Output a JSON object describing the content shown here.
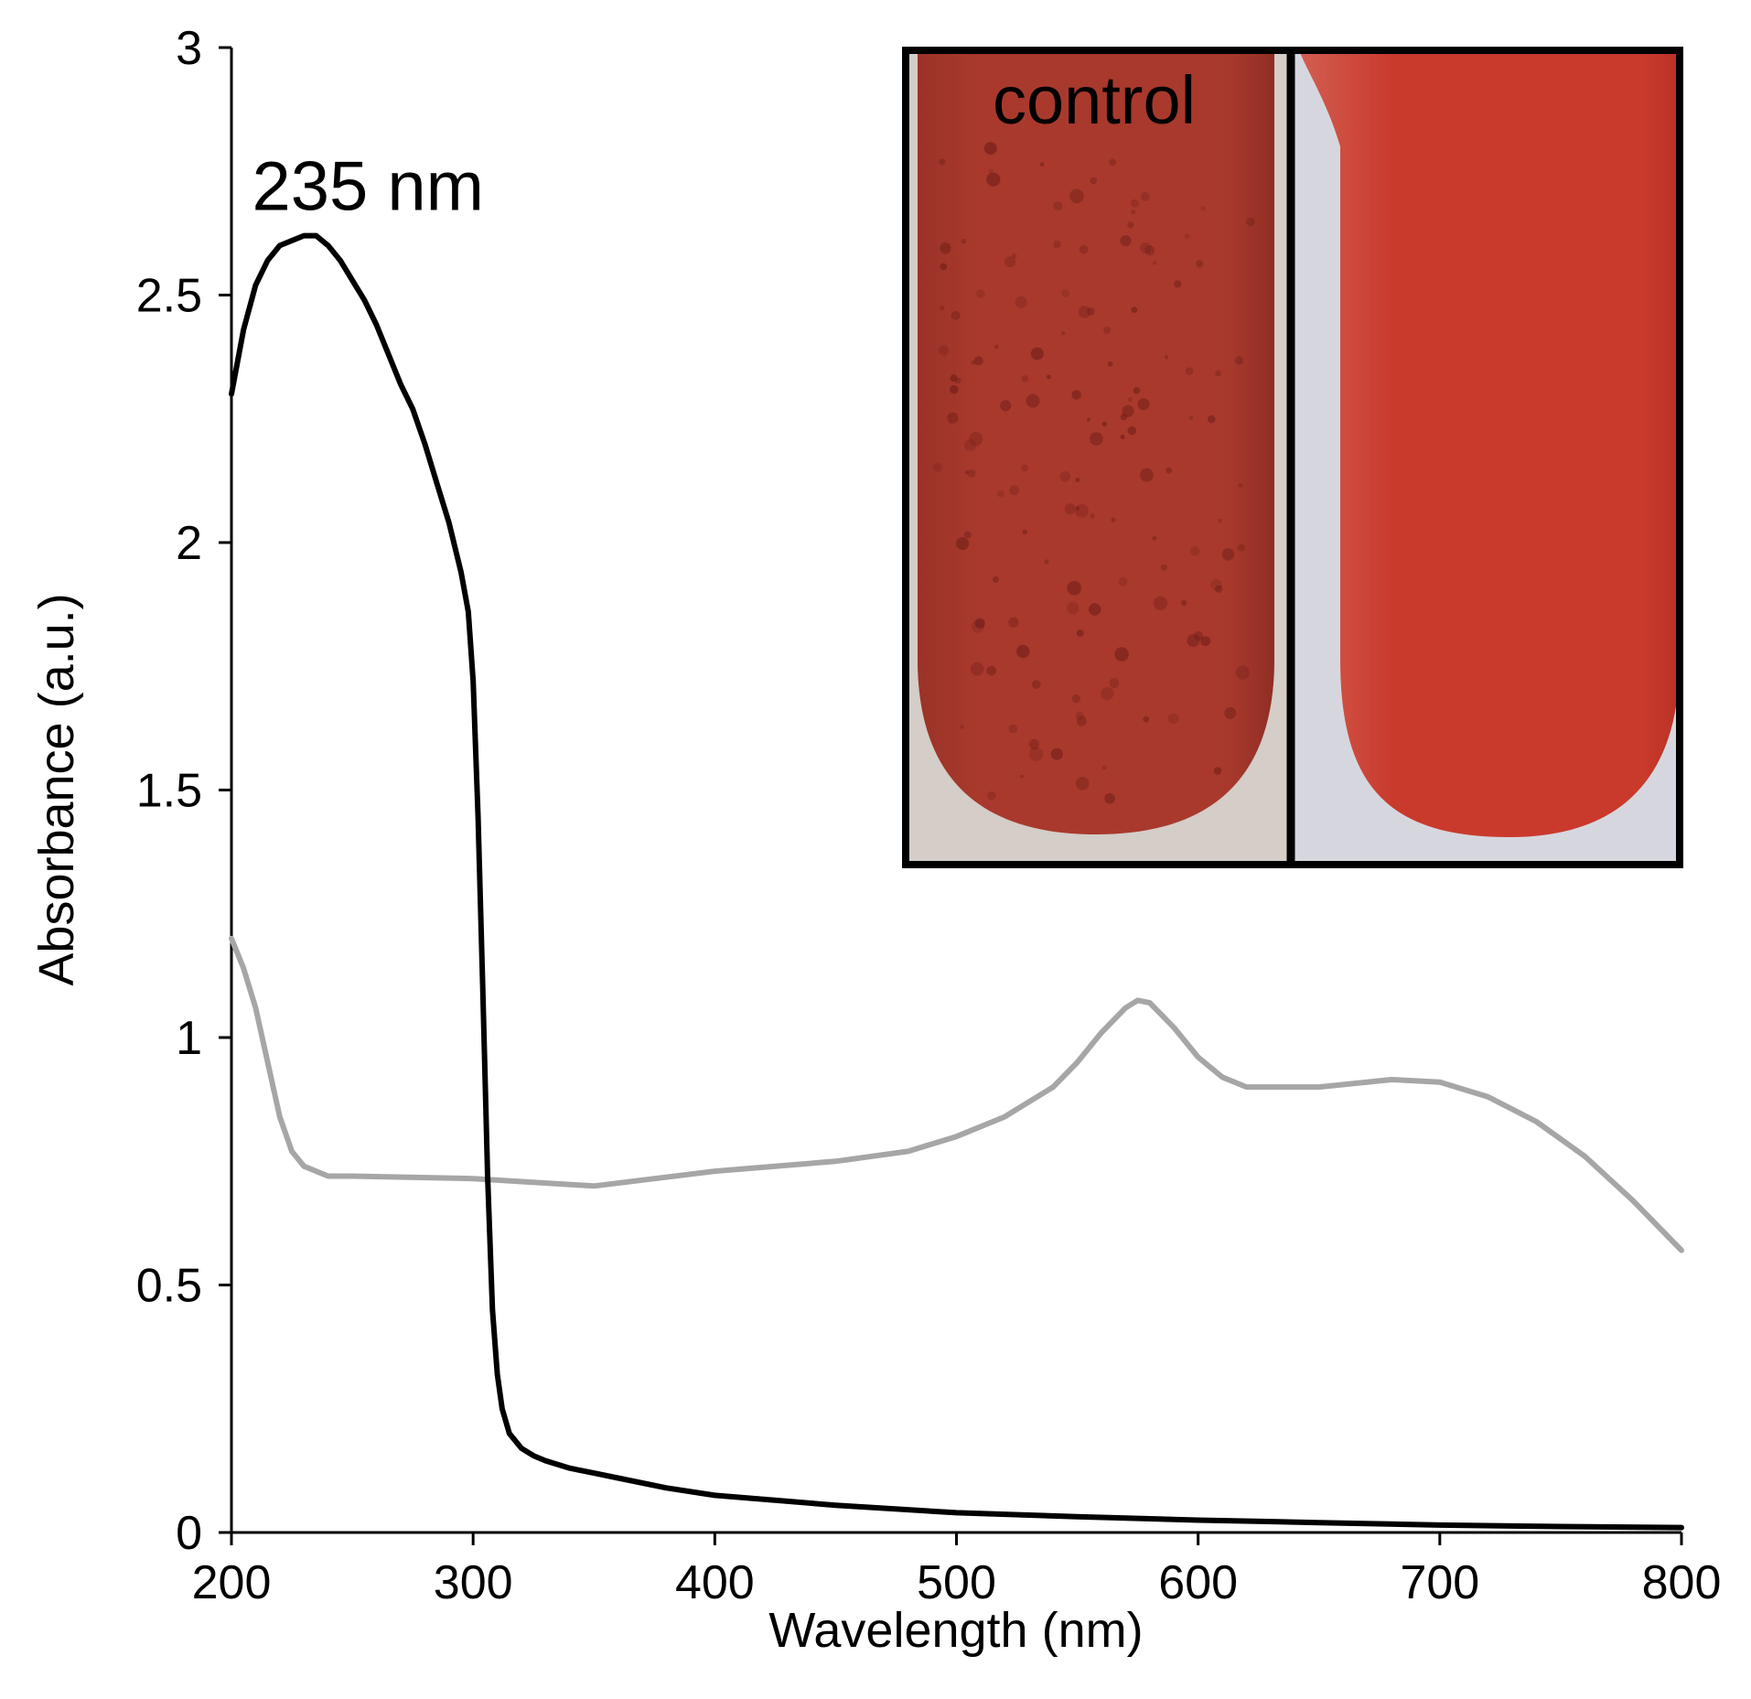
{
  "chart_data": {
    "type": "line",
    "title": "",
    "xlabel": "Wavelength (nm)",
    "ylabel": "Absorbance (a.u.)",
    "xlim": [
      200,
      800
    ],
    "ylim": [
      0,
      3
    ],
    "xticks": [
      200,
      300,
      400,
      500,
      600,
      700,
      800
    ],
    "yticks": [
      0,
      0.5,
      1,
      1.5,
      2,
      2.5,
      3
    ],
    "xtick_labels": [
      "200",
      "300",
      "400",
      "500",
      "600",
      "700",
      "800"
    ],
    "ytick_labels": [
      "0",
      "0.5",
      "1",
      "1.5",
      "2",
      "2.5",
      "3"
    ],
    "grid": false,
    "legend": "none",
    "series": [
      {
        "name": "black",
        "color": "#000000",
        "x": [
          200,
          205,
          210,
          215,
          220,
          225,
          230,
          235,
          240,
          245,
          250,
          255,
          260,
          265,
          270,
          275,
          280,
          285,
          290,
          295,
          298,
          300,
          302,
          304,
          306,
          308,
          310,
          312,
          315,
          320,
          325,
          330,
          340,
          350,
          360,
          380,
          400,
          450,
          500,
          550,
          600,
          650,
          700,
          750,
          800
        ],
        "y": [
          2.3,
          2.43,
          2.52,
          2.57,
          2.6,
          2.61,
          2.62,
          2.62,
          2.6,
          2.57,
          2.53,
          2.49,
          2.44,
          2.38,
          2.32,
          2.27,
          2.2,
          2.12,
          2.04,
          1.94,
          1.86,
          1.72,
          1.45,
          1.1,
          0.72,
          0.45,
          0.32,
          0.25,
          0.2,
          0.17,
          0.155,
          0.145,
          0.13,
          0.12,
          0.11,
          0.09,
          0.075,
          0.055,
          0.04,
          0.032,
          0.025,
          0.02,
          0.015,
          0.012,
          0.01
        ]
      },
      {
        "name": "gray",
        "color": "#a6a6a6",
        "x": [
          200,
          205,
          210,
          215,
          220,
          225,
          230,
          240,
          250,
          300,
          350,
          400,
          450,
          480,
          500,
          520,
          540,
          550,
          560,
          570,
          575,
          580,
          590,
          600,
          610,
          620,
          630,
          650,
          680,
          700,
          720,
          740,
          760,
          780,
          800
        ],
        "y": [
          1.2,
          1.14,
          1.06,
          0.95,
          0.84,
          0.77,
          0.74,
          0.72,
          0.72,
          0.715,
          0.7,
          0.73,
          0.75,
          0.77,
          0.8,
          0.84,
          0.9,
          0.95,
          1.01,
          1.06,
          1.075,
          1.07,
          1.02,
          0.96,
          0.92,
          0.9,
          0.9,
          0.9,
          0.915,
          0.91,
          0.88,
          0.83,
          0.76,
          0.67,
          0.57
        ]
      }
    ],
    "annotations": [
      {
        "text": "235 nm",
        "x": 235,
        "y": 2.62
      }
    ],
    "inset": {
      "panels": [
        {
          "label": "control",
          "tube_color": "#a9392d",
          "background": "#d4cdc8",
          "speckled": true
        },
        {
          "label": "",
          "tube_color": "#c93a2c",
          "background": "#d6d7de",
          "speckled": false
        }
      ]
    }
  }
}
